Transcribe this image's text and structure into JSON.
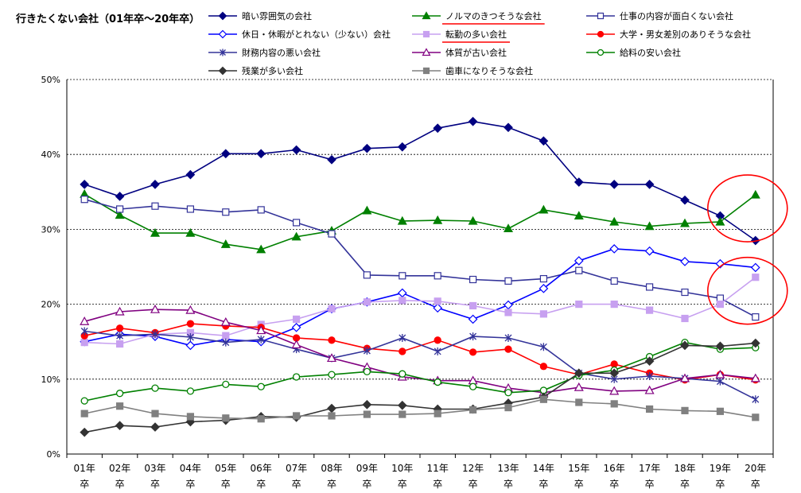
{
  "chart_data": {
    "type": "line",
    "title": "行きたくない会社（01年卒～20年卒）",
    "xlabel": "",
    "ylabel": "",
    "ylim": [
      0,
      50
    ],
    "yticks": [
      "0%",
      "10%",
      "20%",
      "30%",
      "40%",
      "50%"
    ],
    "grid": "horizontal-dotted",
    "legend_placement": "top",
    "categories": [
      "01年卒",
      "02年卒",
      "03年卒",
      "04年卒",
      "05年卒",
      "06年卒",
      "07年卒",
      "08年卒",
      "09年卒",
      "10年卒",
      "11年卒",
      "12年卒",
      "13年卒",
      "14年卒",
      "15年卒",
      "16年卒",
      "17年卒",
      "18年卒",
      "19年卒",
      "20年卒"
    ],
    "category_lines": [
      [
        "01年",
        "卒"
      ],
      [
        "02年",
        "卒"
      ],
      [
        "03年",
        "卒"
      ],
      [
        "04年",
        "卒"
      ],
      [
        "05年",
        "卒"
      ],
      [
        "06年",
        "卒"
      ],
      [
        "07年",
        "卒"
      ],
      [
        "08年",
        "卒"
      ],
      [
        "09年",
        "卒"
      ],
      [
        "10年",
        "卒"
      ],
      [
        "11年",
        "卒"
      ],
      [
        "12年",
        "卒"
      ],
      [
        "13年",
        "卒"
      ],
      [
        "14年",
        "卒"
      ],
      [
        "15年",
        "卒"
      ],
      [
        "16年",
        "卒"
      ],
      [
        "17年",
        "卒"
      ],
      [
        "18年",
        "卒"
      ],
      [
        "19年",
        "卒"
      ],
      [
        "20年",
        "卒"
      ]
    ],
    "series": [
      {
        "name": "暗い雰囲気の会社",
        "color": "#000080",
        "marker": "diamond",
        "fill": true,
        "values": [
          36.0,
          34.4,
          36.0,
          37.3,
          40.1,
          40.1,
          40.6,
          39.3,
          40.8,
          41.0,
          43.5,
          44.4,
          43.6,
          41.8,
          36.3,
          36.0,
          36.0,
          33.9,
          31.8,
          28.5
        ]
      },
      {
        "name": "ノルマのきつそうな会社",
        "color": "#008000",
        "marker": "triangle",
        "fill": true,
        "values": [
          34.7,
          31.9,
          29.5,
          29.5,
          28.0,
          27.3,
          29.0,
          29.8,
          32.5,
          31.1,
          31.2,
          31.1,
          30.1,
          32.6,
          31.8,
          31.0,
          30.4,
          30.8,
          31.0,
          34.6
        ]
      },
      {
        "name": "仕事の内容が面白くない会社",
        "color": "#333399",
        "marker": "square",
        "fill": false,
        "values": [
          34.0,
          32.7,
          33.1,
          32.7,
          32.3,
          32.6,
          30.9,
          29.4,
          23.9,
          23.8,
          23.8,
          23.3,
          23.1,
          23.4,
          24.5,
          23.1,
          22.3,
          21.6,
          20.8,
          18.3
        ]
      },
      {
        "name": "休日・休暇がとれない（少ない）会社",
        "color": "#0000ff",
        "marker": "diamond",
        "fill": false,
        "values": [
          15.0,
          16.0,
          15.7,
          14.5,
          15.3,
          15.0,
          16.9,
          19.4,
          20.3,
          21.5,
          19.5,
          18.0,
          19.9,
          22.1,
          25.8,
          27.4,
          27.1,
          25.7,
          25.4,
          24.9
        ]
      },
      {
        "name": "転勤の多い会社",
        "color": "#c7a0f0",
        "marker": "square",
        "fill": true,
        "values": [
          14.9,
          14.7,
          16.0,
          16.2,
          15.8,
          17.3,
          18.0,
          19.4,
          20.3,
          20.5,
          20.4,
          19.8,
          18.9,
          18.7,
          20.0,
          20.0,
          19.2,
          18.1,
          20.0,
          23.6
        ]
      },
      {
        "name": "大学・男女差別のありそうな会社",
        "color": "#ff0000",
        "marker": "circle",
        "fill": true,
        "values": [
          15.8,
          16.8,
          16.2,
          17.4,
          17.1,
          16.9,
          15.5,
          15.2,
          14.1,
          13.7,
          15.2,
          13.6,
          14.0,
          11.7,
          10.6,
          12.0,
          10.8,
          9.9,
          10.6,
          9.9
        ]
      },
      {
        "name": "財務内容の悪い会社",
        "color": "#333399",
        "marker": "asterisk",
        "fill": false,
        "values": [
          16.4,
          15.8,
          16.0,
          15.6,
          14.9,
          15.3,
          14.0,
          12.8,
          13.8,
          15.5,
          13.7,
          15.7,
          15.5,
          14.3,
          10.8,
          10.0,
          10.4,
          10.1,
          9.7,
          7.3
        ]
      },
      {
        "name": "体質が古い会社",
        "color": "#800080",
        "marker": "triangle",
        "fill": false,
        "values": [
          17.7,
          19.0,
          19.3,
          19.2,
          17.6,
          16.5,
          14.6,
          12.8,
          11.6,
          10.3,
          9.8,
          9.8,
          8.8,
          8.2,
          8.9,
          8.4,
          8.5,
          10.1,
          10.6,
          10.1
        ]
      },
      {
        "name": "給料の安い会社",
        "color": "#008000",
        "marker": "circle",
        "fill": false,
        "values": [
          7.1,
          8.1,
          8.8,
          8.4,
          9.3,
          9.0,
          10.3,
          10.6,
          11.0,
          10.7,
          9.6,
          9.0,
          8.2,
          8.5,
          10.5,
          11.2,
          13.0,
          14.9,
          14.0,
          14.2
        ]
      },
      {
        "name": "残業が多い会社",
        "color": "#333333",
        "marker": "diamond",
        "fill": true,
        "values": [
          2.9,
          3.8,
          3.6,
          4.3,
          4.5,
          5.0,
          4.9,
          6.1,
          6.6,
          6.5,
          6.0,
          6.0,
          6.8,
          7.6,
          10.8,
          10.8,
          12.4,
          14.5,
          14.4,
          14.8
        ]
      },
      {
        "name": "歯車になりそうな会社",
        "color": "#808080",
        "marker": "square",
        "fill": true,
        "values": [
          5.4,
          6.4,
          5.4,
          5.0,
          4.8,
          4.7,
          5.1,
          5.1,
          5.3,
          5.3,
          5.4,
          5.9,
          6.2,
          7.3,
          6.9,
          6.7,
          6.0,
          5.8,
          5.7,
          4.9
        ]
      }
    ],
    "annotations": [
      {
        "type": "underline",
        "target": "ノルマのきつそうな会社",
        "color": "#ff0000"
      },
      {
        "type": "underline",
        "target": "転勤の多い会社",
        "color": "#ff0000"
      },
      {
        "type": "ellipse",
        "around": "20年卒 ノルマのきつそうな会社",
        "color": "#ff0000"
      },
      {
        "type": "ellipse",
        "around": "20年卒 転勤の多い会社",
        "color": "#ff0000"
      }
    ]
  }
}
